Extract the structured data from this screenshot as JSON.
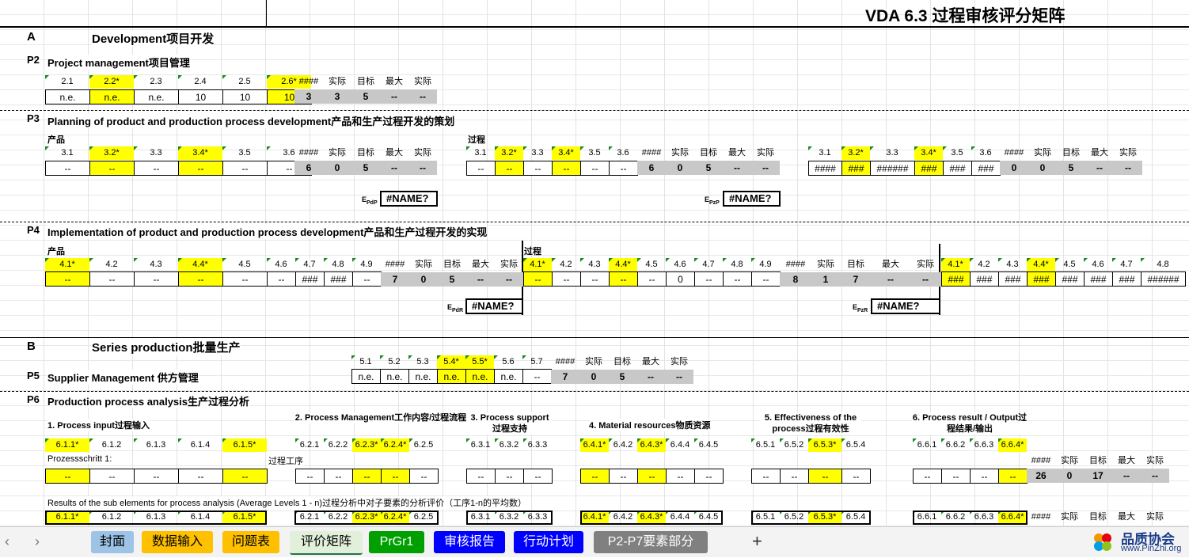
{
  "title": "VDA 6.3 过程审核评分矩阵",
  "sectionA": {
    "letter": "A",
    "title": "Development项目开发"
  },
  "p2": {
    "code": "P2",
    "title": "Project management项目管理",
    "headers": [
      "2.1",
      "2.2*",
      "2.3",
      "2.4",
      "2.5",
      "2.6*"
    ],
    "values": [
      "n.e.",
      "n.e.",
      "n.e.",
      "10",
      "10",
      "10"
    ],
    "summary_headers": [
      "####",
      "实际",
      "目标",
      "最大",
      "实际"
    ],
    "summary_values": [
      "3",
      "3",
      "5",
      "--",
      "--"
    ]
  },
  "p3": {
    "code": "P3",
    "title": "Planning of product and production process development产品和生产过程开发的策划",
    "label_product": "产品",
    "label_process": "过程",
    "headers": [
      "3.1",
      "3.2*",
      "3.3",
      "3.4*",
      "3.5",
      "3.6"
    ],
    "product_values": [
      "--",
      "--",
      "--",
      "--",
      "--",
      "--"
    ],
    "process_values": [
      "--",
      "--",
      "--",
      "--",
      "--",
      "--"
    ],
    "third_values": [
      "####",
      "###",
      "######",
      "###",
      "###",
      "###"
    ],
    "summary_headers": [
      "####",
      "实际",
      "目标",
      "最大",
      "实际"
    ],
    "product_summary": [
      "6",
      "0",
      "5",
      "--",
      "--"
    ],
    "process_summary": [
      "6",
      "0",
      "5",
      "--",
      "--"
    ],
    "third_summary": [
      "0",
      "0",
      "5",
      "--",
      "--"
    ],
    "epdp_label": "EPdP",
    "epzp_label": "EPzP",
    "epdp_value": "#NAME?",
    "epzp_value": "#NAME?"
  },
  "p4": {
    "code": "P4",
    "title": "Implementation of product and production process development产品和生产过程开发的实现",
    "label_product": "产品",
    "label_process": "过程",
    "headers": [
      "4.1*",
      "4.2",
      "4.3",
      "4.4*",
      "4.5",
      "4.6",
      "4.7",
      "4.8",
      "4.9"
    ],
    "product_values": [
      "--",
      "--",
      "--",
      "--",
      "--",
      "--",
      "###",
      "###",
      "--"
    ],
    "process_values": [
      "--",
      "--",
      "--",
      "--",
      "--",
      "0",
      "--",
      "--",
      "--"
    ],
    "third_headers": [
      "4.1*",
      "4.2",
      "4.3",
      "4.4*",
      "4.5",
      "4.6",
      "4.7",
      "4.8"
    ],
    "third_values": [
      "###",
      "###",
      "###",
      "###",
      "###",
      "###",
      "###",
      "######"
    ],
    "summary_headers": [
      "####",
      "实际",
      "目标",
      "最大",
      "实际"
    ],
    "product_summary": [
      "7",
      "0",
      "5",
      "--",
      "--"
    ],
    "process_summary": [
      "8",
      "1",
      "7",
      "--",
      "--"
    ],
    "edr_label": "EPdR",
    "ezr_label": "EPzR",
    "edr_value": "#NAME?",
    "ezr_value": "#NAME?"
  },
  "sectionB": {
    "letter": "B",
    "title": "Series production批量生产"
  },
  "p5": {
    "code": "P5",
    "title": "Supplier Management 供方管理",
    "headers": [
      "5.1",
      "5.2",
      "5.3",
      "5.4*",
      "5.5*",
      "5.6",
      "5.7"
    ],
    "values": [
      "n.e.",
      "n.e.",
      "n.e.",
      "n.e.",
      "n.e.",
      "n.e.",
      "--"
    ],
    "summary_headers": [
      "####",
      "实际",
      "目标",
      "最大",
      "实际"
    ],
    "summary_values": [
      "7",
      "0",
      "5",
      "--",
      "--"
    ]
  },
  "p6": {
    "code": "P6",
    "title": "Production process analysis生产过程分析",
    "groups": [
      "1. Process input过程输入",
      "2. Process Management工作内容/过程流程",
      "3. Process support过程支持",
      "4. Material resources物质资源",
      "5. Effectiveness of the process过程有效性",
      "6. Process result / Output过程结果/输出"
    ],
    "headers": [
      "6.1.1*",
      "6.1.2",
      "6.1.3",
      "6.1.4",
      "6.1.5*",
      "6.2.1",
      "6.2.2",
      "6.2.3*",
      "6.2.4*",
      "6.2.5",
      "6.3.1",
      "6.3.2",
      "6.3.3",
      "6.4.1*",
      "6.4.2",
      "6.4.3*",
      "6.4.4",
      "6.4.5",
      "6.5.1",
      "6.5.2",
      "6.5.3*",
      "6.5.4",
      "6.6.1",
      "6.6.2",
      "6.6.3",
      "6.6.4*"
    ],
    "step_label": "Prozessschritt   1:",
    "step_label_cn": "过程工序",
    "cell_value": "--",
    "summary_headers": [
      "####",
      "实际",
      "目标",
      "最大",
      "实际"
    ],
    "summary_values": [
      "26",
      "0",
      "17",
      "--",
      "--"
    ],
    "results_text": "Results of the sub elements for process analysis (Average Levels 1 - n)过程分析中对子要素的分析评价（工序1-n的平均数）",
    "bottom_summary_headers": [
      "####",
      "实际",
      "目标",
      "最大",
      "实际"
    ]
  },
  "sheet_tabs": [
    {
      "label": "封面",
      "color": "#9dc3e6"
    },
    {
      "label": "数据输入",
      "color": "#ffc000"
    },
    {
      "label": "问题表",
      "color": "#ffc000"
    },
    {
      "label": "评价矩阵",
      "color": "#e2efda"
    },
    {
      "label": "PrGr1",
      "color": "#00a000"
    },
    {
      "label": "审核报告",
      "color": "#0000ff"
    },
    {
      "label": "行动计划",
      "color": "#0000ff"
    },
    {
      "label": "P2-P7要素部分",
      "color": "#808080"
    }
  ],
  "add_sheet": "+",
  "watermark": {
    "name": "品质协会",
    "url": "www.PinZhi.org"
  }
}
